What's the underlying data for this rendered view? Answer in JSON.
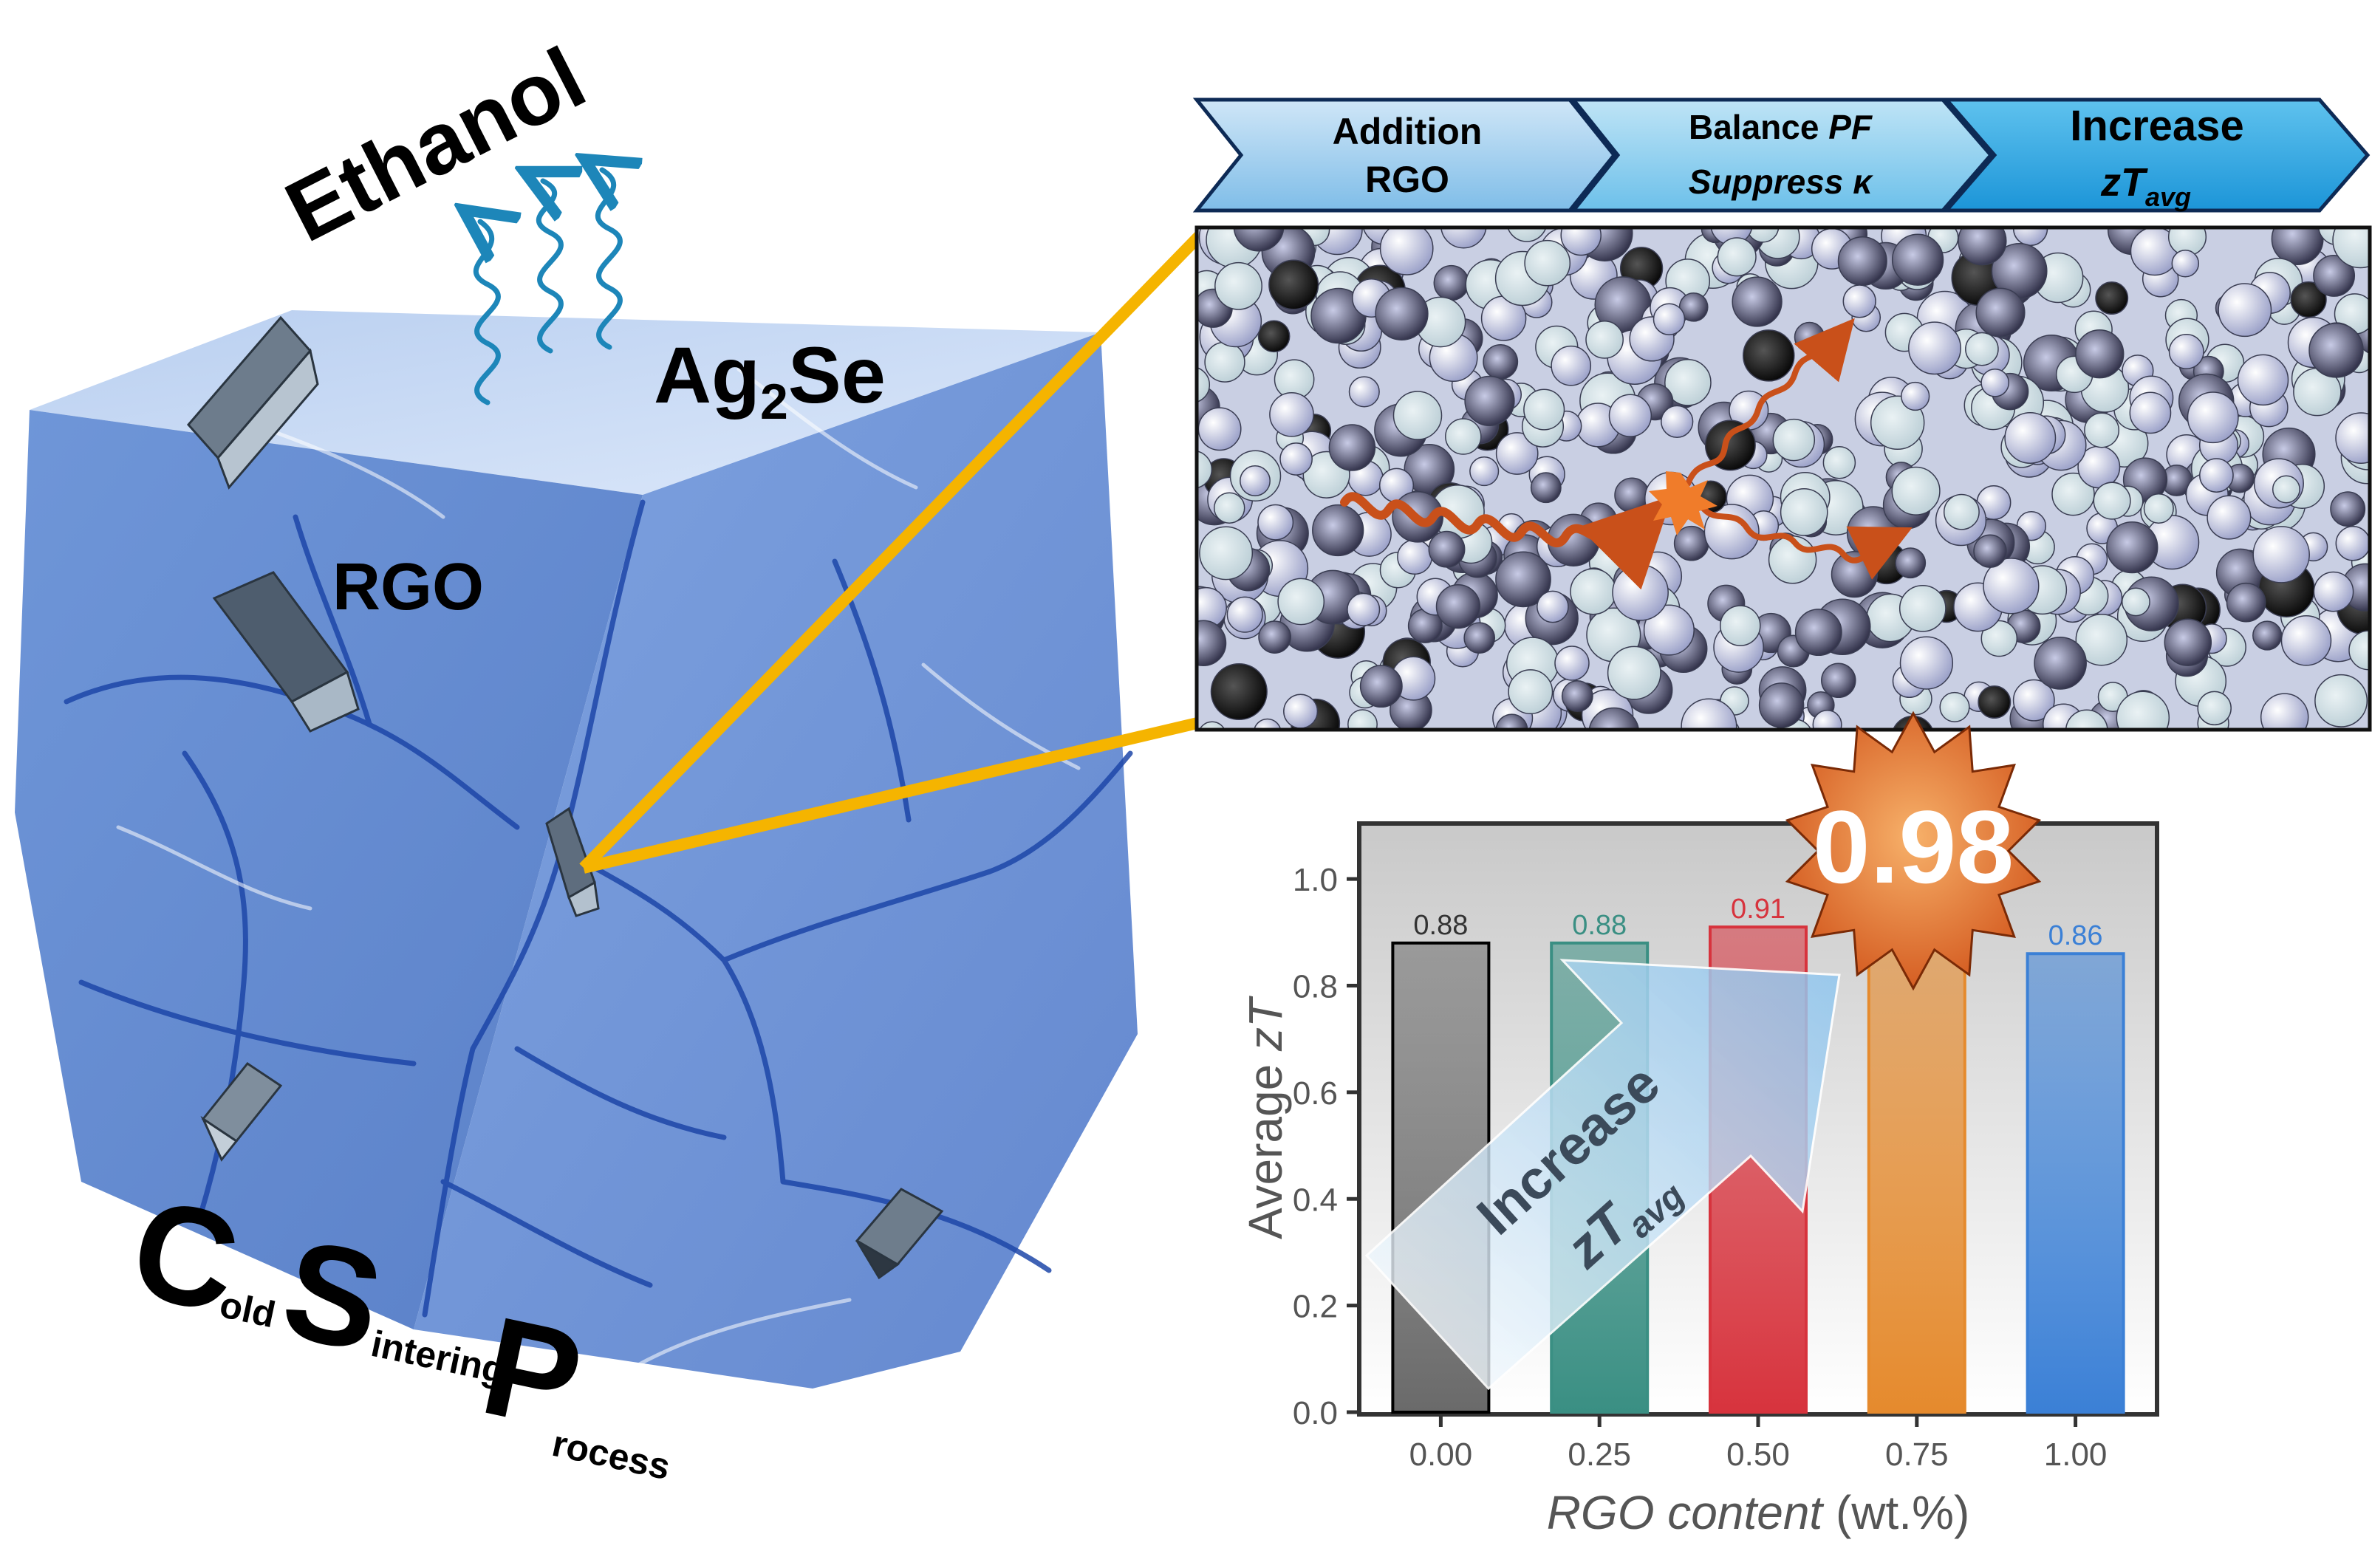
{
  "cube": {
    "ethanol_label": "Ethanol",
    "ag2se_main": "Ag",
    "ag2se_sub": "2",
    "ag2se_tail": "Se",
    "rgo_label": "RGO",
    "csp": {
      "c_big": "C",
      "c_small": "old",
      "s_big": "S",
      "s_small": "intering",
      "p_big": "P",
      "p_small": "rocess"
    }
  },
  "process_flow": {
    "steps": [
      {
        "line1": "Addition",
        "line2": "RGO"
      },
      {
        "line1_a": "Balance ",
        "line1_b": "PF",
        "line2_a": "Suppress ",
        "line2_b": "κ"
      },
      {
        "line1": "Increase",
        "line2_main": "zT",
        "line2_sub": "avg"
      }
    ]
  },
  "chart_data": {
    "type": "bar",
    "x": [
      0.0,
      0.25,
      0.5,
      0.75,
      1.0
    ],
    "categories": [
      "0.00",
      "0.25",
      "0.50",
      "0.75",
      "1.00"
    ],
    "values": [
      0.88,
      0.88,
      0.91,
      0.98,
      0.86
    ],
    "data_labels": [
      "0.88",
      "0.88",
      "0.91",
      "",
      "0.86"
    ],
    "highlight_value": "0.98",
    "xlabel_italic": "RGO content",
    "xlabel_unit": " (wt.%)",
    "ylabel_plain": "Average ",
    "ylabel_italic": "zT",
    "ylim": [
      0,
      1.1
    ],
    "yticks": [
      "0.0",
      "0.2",
      "0.4",
      "0.6",
      "0.8",
      "1.0"
    ],
    "ytick_values": [
      0,
      0.2,
      0.4,
      0.6,
      0.8,
      1.0
    ],
    "bar_colors": [
      "#6a6a6a",
      "#3a8f83",
      "#d7333d",
      "#e58a2d",
      "#3b80d6"
    ],
    "label_colors": [
      "#333333",
      "#3a8f83",
      "#d7333d",
      "#e58a2d",
      "#3b80d6"
    ],
    "arrow_text_line1": "Increase",
    "arrow_text_line2_main": "zT",
    "arrow_text_line2_sub": "avg",
    "grid": false
  }
}
